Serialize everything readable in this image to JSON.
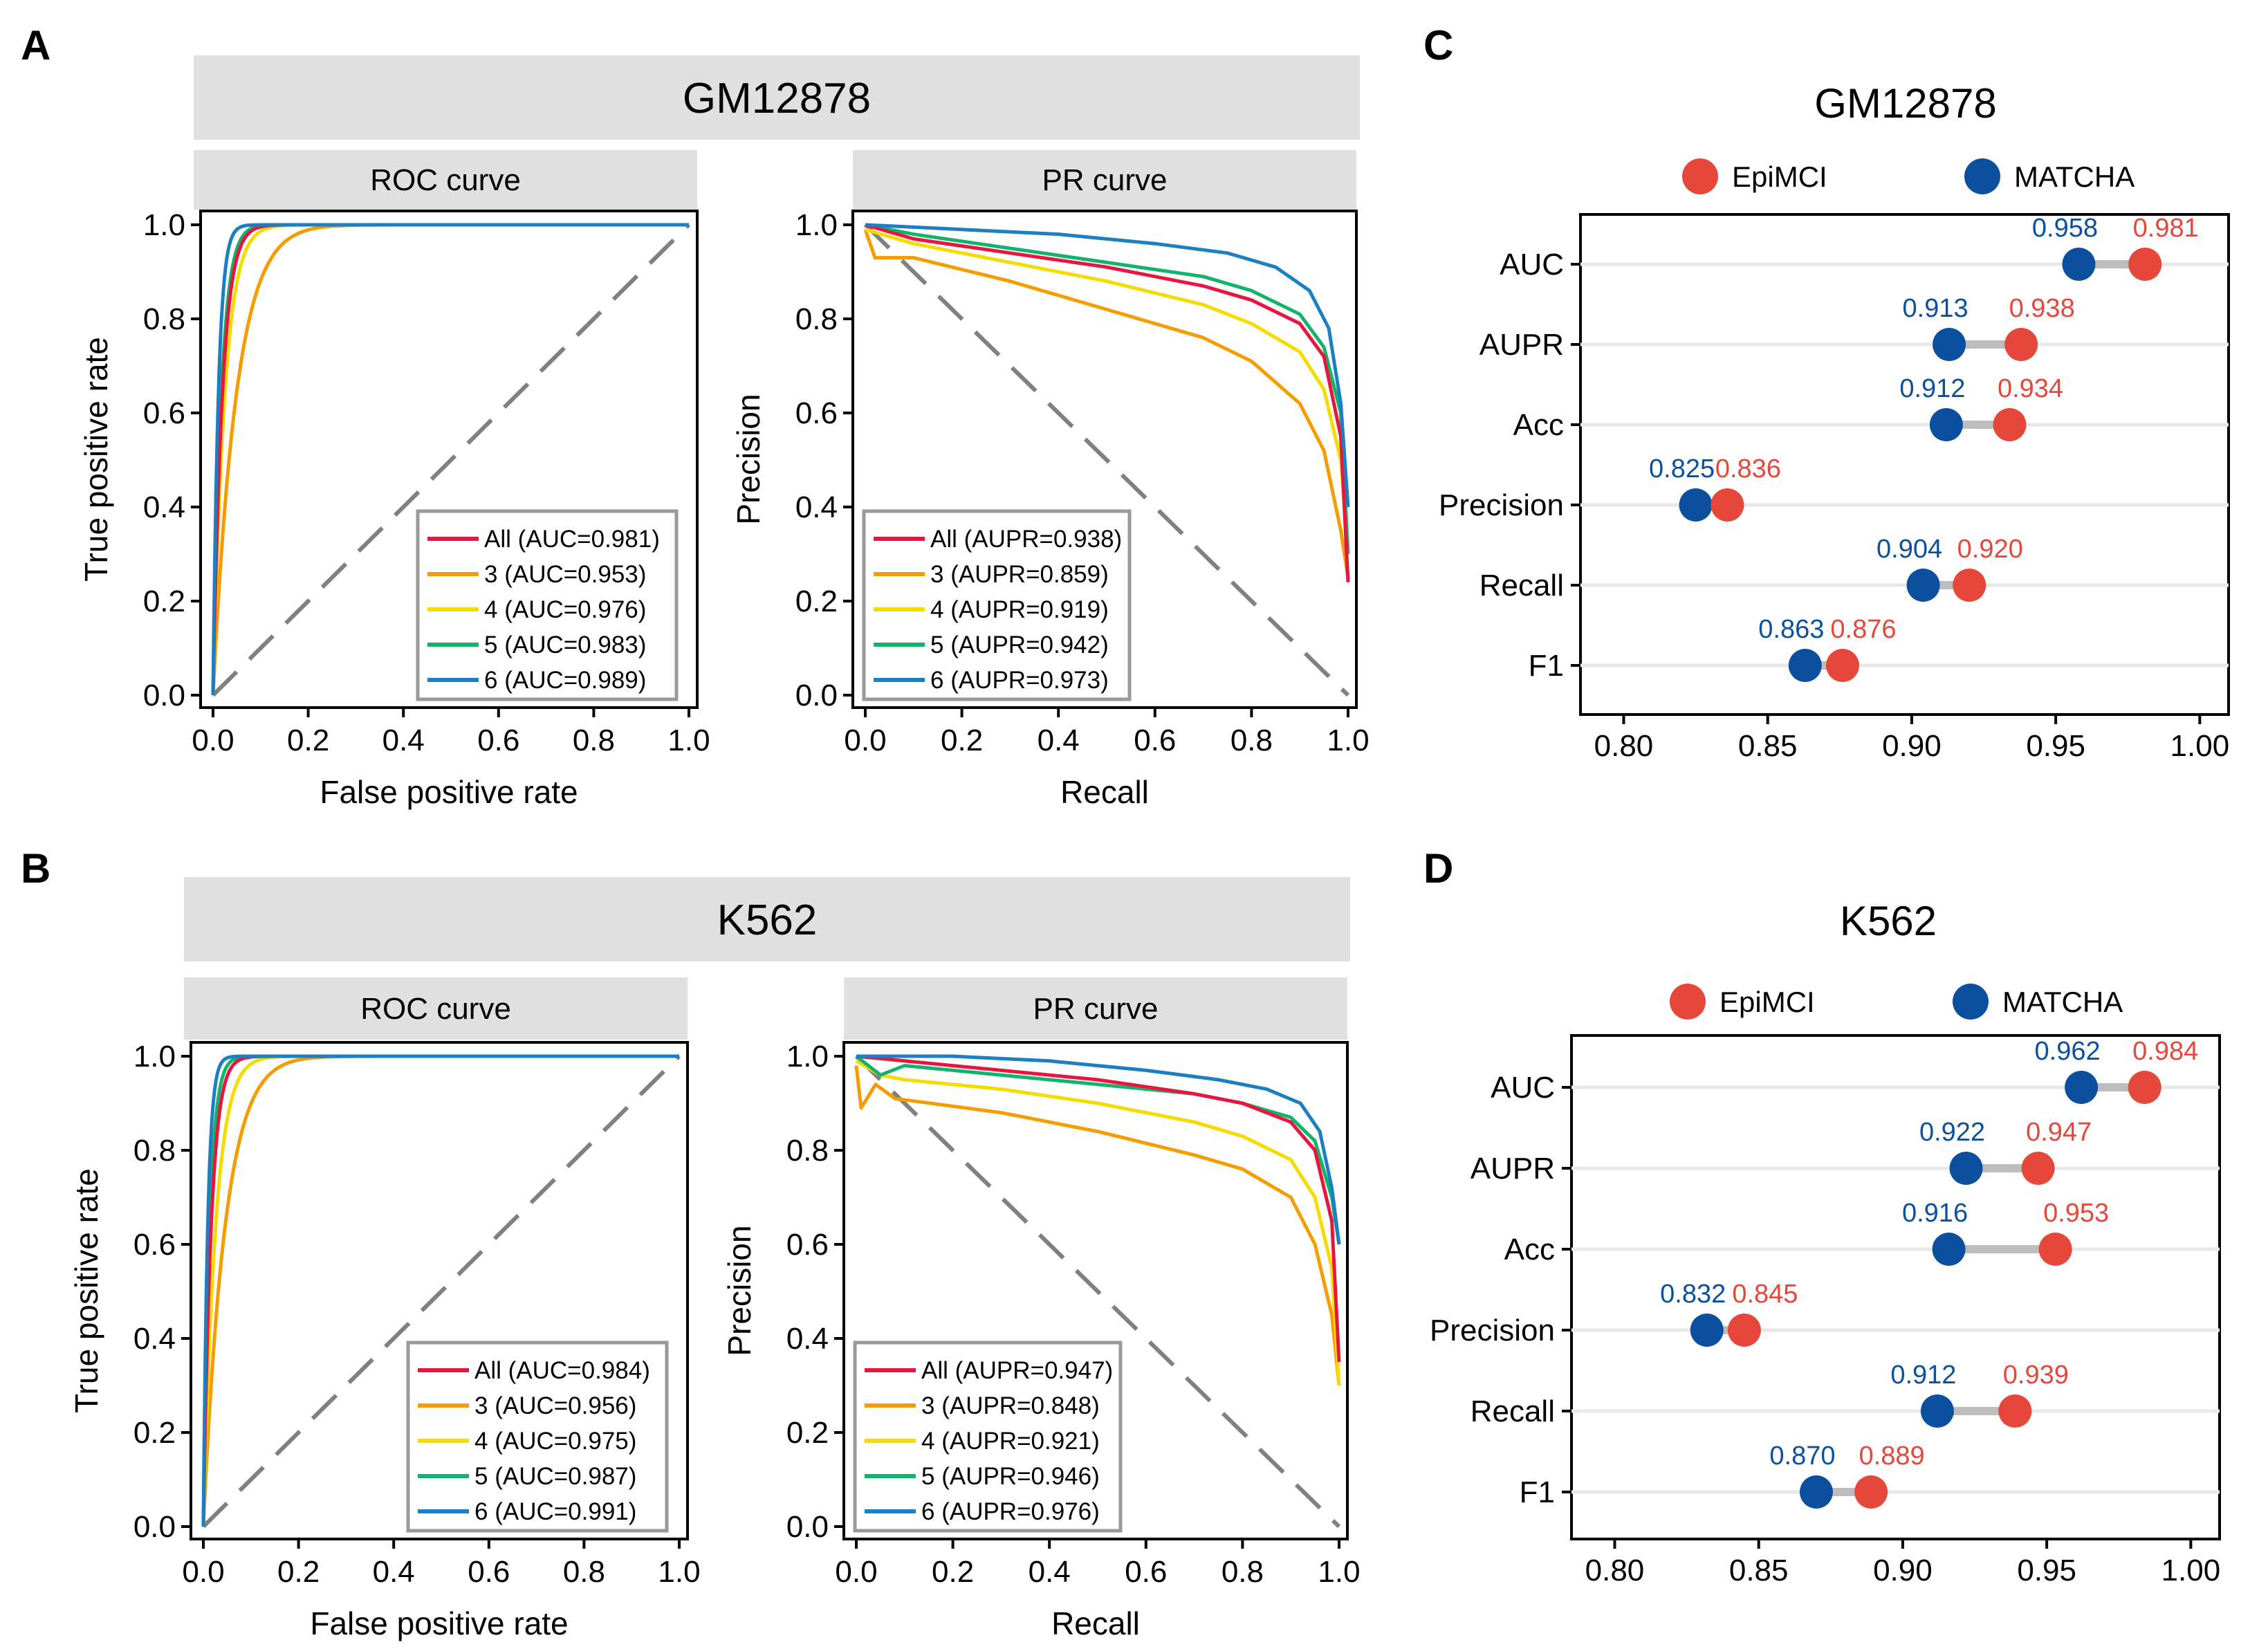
{
  "panel_labels": {
    "A": "A",
    "B": "B",
    "C": "C",
    "D": "D"
  },
  "colors": {
    "All": "#e8163f",
    "3": "#f59d00",
    "4": "#f5dc00",
    "5": "#14b36b",
    "6": "#1b7fc1",
    "epimci": "#e6473b",
    "matcha": "#0b4f9f",
    "strip": "#e0e0e0",
    "diag": "#808080",
    "connector": "#bdbdbd"
  },
  "chart_data": [
    {
      "id": "A",
      "type": "line",
      "cell_line": "GM12878",
      "roc": {
        "strip": "ROC curve",
        "xlabel": "False positive rate",
        "ylabel": "True positive rate",
        "xlim": [
          0,
          1
        ],
        "ylim": [
          0,
          1
        ],
        "xticks": [
          "0.0",
          "0.2",
          "0.4",
          "0.6",
          "0.8",
          "1.0"
        ],
        "yticks": [
          "0.0",
          "0.2",
          "0.4",
          "0.6",
          "0.8",
          "1.0"
        ],
        "legend_position": "bottom-right",
        "series": [
          {
            "key": "All",
            "name": "All (AUC=0.981)",
            "auc": 0.981
          },
          {
            "key": "3",
            "name": "3 (AUC=0.953)",
            "auc": 0.953
          },
          {
            "key": "4",
            "name": "4 (AUC=0.976)",
            "auc": 0.976
          },
          {
            "key": "5",
            "name": "5 (AUC=0.983)",
            "auc": 0.983
          },
          {
            "key": "6",
            "name": "6 (AUC=0.989)",
            "auc": 0.989
          }
        ]
      },
      "pr": {
        "strip": "PR curve",
        "xlabel": "Recall",
        "ylabel": "Precision",
        "xlim": [
          0,
          1
        ],
        "ylim": [
          0,
          1
        ],
        "xticks": [
          "0.0",
          "0.2",
          "0.4",
          "0.6",
          "0.8",
          "1.0"
        ],
        "yticks": [
          "0.0",
          "0.2",
          "0.4",
          "0.6",
          "0.8",
          "1.0"
        ],
        "legend_position": "bottom-left",
        "series": [
          {
            "key": "All",
            "name": "All (AUPR=0.938)",
            "aupr": 0.938,
            "points": [
              [
                0,
                1
              ],
              [
                0.1,
                0.97
              ],
              [
                0.3,
                0.94
              ],
              [
                0.5,
                0.91
              ],
              [
                0.7,
                0.87
              ],
              [
                0.8,
                0.84
              ],
              [
                0.9,
                0.79
              ],
              [
                0.95,
                0.72
              ],
              [
                0.985,
                0.55
              ],
              [
                1,
                0.24
              ]
            ]
          },
          {
            "key": "3",
            "name": "3 (AUPR=0.859)",
            "aupr": 0.859,
            "points": [
              [
                0,
                0.99
              ],
              [
                0.02,
                0.93
              ],
              [
                0.1,
                0.93
              ],
              [
                0.3,
                0.88
              ],
              [
                0.5,
                0.82
              ],
              [
                0.7,
                0.76
              ],
              [
                0.8,
                0.71
              ],
              [
                0.9,
                0.62
              ],
              [
                0.95,
                0.52
              ],
              [
                0.985,
                0.35
              ],
              [
                1,
                0.25
              ]
            ]
          },
          {
            "key": "4",
            "name": "4 (AUPR=0.919)",
            "aupr": 0.919,
            "points": [
              [
                0,
                0.99
              ],
              [
                0.1,
                0.96
              ],
              [
                0.3,
                0.92
              ],
              [
                0.5,
                0.88
              ],
              [
                0.7,
                0.83
              ],
              [
                0.8,
                0.79
              ],
              [
                0.9,
                0.73
              ],
              [
                0.95,
                0.65
              ],
              [
                0.985,
                0.5
              ],
              [
                1,
                0.3
              ]
            ]
          },
          {
            "key": "5",
            "name": "5 (AUPR=0.942)",
            "aupr": 0.942,
            "points": [
              [
                0,
                1
              ],
              [
                0.1,
                0.98
              ],
              [
                0.3,
                0.95
              ],
              [
                0.5,
                0.92
              ],
              [
                0.7,
                0.89
              ],
              [
                0.8,
                0.86
              ],
              [
                0.9,
                0.81
              ],
              [
                0.95,
                0.74
              ],
              [
                0.985,
                0.6
              ],
              [
                1,
                0.3
              ]
            ]
          },
          {
            "key": "6",
            "name": "6 (AUPR=0.973)",
            "aupr": 0.973,
            "points": [
              [
                0,
                1
              ],
              [
                0.2,
                0.99
              ],
              [
                0.4,
                0.98
              ],
              [
                0.6,
                0.96
              ],
              [
                0.75,
                0.94
              ],
              [
                0.85,
                0.91
              ],
              [
                0.92,
                0.86
              ],
              [
                0.96,
                0.78
              ],
              [
                0.985,
                0.62
              ],
              [
                1,
                0.4
              ]
            ]
          }
        ]
      }
    },
    {
      "id": "B",
      "type": "line",
      "cell_line": "K562",
      "roc": {
        "strip": "ROC curve",
        "xlabel": "False positive rate",
        "ylabel": "True positive rate",
        "xlim": [
          0,
          1
        ],
        "ylim": [
          0,
          1
        ],
        "xticks": [
          "0.0",
          "0.2",
          "0.4",
          "0.6",
          "0.8",
          "1.0"
        ],
        "yticks": [
          "0.0",
          "0.2",
          "0.4",
          "0.6",
          "0.8",
          "1.0"
        ],
        "legend_position": "bottom-right",
        "series": [
          {
            "key": "All",
            "name": "All (AUC=0.984)",
            "auc": 0.984
          },
          {
            "key": "3",
            "name": "3 (AUC=0.956)",
            "auc": 0.956
          },
          {
            "key": "4",
            "name": "4 (AUC=0.975)",
            "auc": 0.975
          },
          {
            "key": "5",
            "name": "5 (AUC=0.987)",
            "auc": 0.987
          },
          {
            "key": "6",
            "name": "6 (AUC=0.991)",
            "auc": 0.991
          }
        ]
      },
      "pr": {
        "strip": "PR curve",
        "xlabel": "Recall",
        "ylabel": "Precision",
        "xlim": [
          0,
          1
        ],
        "ylim": [
          0,
          1
        ],
        "xticks": [
          "0.0",
          "0.2",
          "0.4",
          "0.6",
          "0.8",
          "1.0"
        ],
        "yticks": [
          "0.0",
          "0.2",
          "0.4",
          "0.6",
          "0.8",
          "1.0"
        ],
        "legend_position": "bottom-left",
        "series": [
          {
            "key": "All",
            "name": "All (AUPR=0.947)",
            "aupr": 0.947,
            "points": [
              [
                0,
                1
              ],
              [
                0.1,
                0.99
              ],
              [
                0.3,
                0.97
              ],
              [
                0.5,
                0.95
              ],
              [
                0.7,
                0.92
              ],
              [
                0.8,
                0.9
              ],
              [
                0.9,
                0.86
              ],
              [
                0.95,
                0.8
              ],
              [
                0.985,
                0.65
              ],
              [
                1,
                0.35
              ]
            ]
          },
          {
            "key": "3",
            "name": "3 (AUPR=0.848)",
            "aupr": 0.848,
            "points": [
              [
                0,
                0.98
              ],
              [
                0.01,
                0.89
              ],
              [
                0.04,
                0.94
              ],
              [
                0.08,
                0.91
              ],
              [
                0.3,
                0.88
              ],
              [
                0.5,
                0.84
              ],
              [
                0.7,
                0.79
              ],
              [
                0.8,
                0.76
              ],
              [
                0.9,
                0.7
              ],
              [
                0.95,
                0.6
              ],
              [
                0.985,
                0.45
              ],
              [
                1,
                0.3
              ]
            ]
          },
          {
            "key": "4",
            "name": "4 (AUPR=0.921)",
            "aupr": 0.921,
            "points": [
              [
                0,
                0.99
              ],
              [
                0.05,
                0.96
              ],
              [
                0.1,
                0.95
              ],
              [
                0.3,
                0.93
              ],
              [
                0.5,
                0.9
              ],
              [
                0.7,
                0.86
              ],
              [
                0.8,
                0.83
              ],
              [
                0.9,
                0.78
              ],
              [
                0.95,
                0.7
              ],
              [
                0.985,
                0.55
              ],
              [
                1,
                0.3
              ]
            ]
          },
          {
            "key": "5",
            "name": "5 (AUPR=0.946)",
            "aupr": 0.946,
            "points": [
              [
                0,
                1
              ],
              [
                0.05,
                0.96
              ],
              [
                0.1,
                0.98
              ],
              [
                0.3,
                0.96
              ],
              [
                0.5,
                0.94
              ],
              [
                0.7,
                0.92
              ],
              [
                0.8,
                0.9
              ],
              [
                0.9,
                0.87
              ],
              [
                0.95,
                0.82
              ],
              [
                0.985,
                0.7
              ],
              [
                1,
                0.6
              ]
            ]
          },
          {
            "key": "6",
            "name": "6 (AUPR=0.976)",
            "aupr": 0.976,
            "points": [
              [
                0,
                1
              ],
              [
                0.2,
                1
              ],
              [
                0.4,
                0.99
              ],
              [
                0.6,
                0.97
              ],
              [
                0.75,
                0.95
              ],
              [
                0.85,
                0.93
              ],
              [
                0.92,
                0.9
              ],
              [
                0.96,
                0.84
              ],
              [
                0.985,
                0.72
              ],
              [
                1,
                0.6
              ]
            ]
          }
        ]
      }
    },
    {
      "id": "C",
      "type": "dumbbell",
      "title": "GM12878",
      "legend": [
        "EpiMCI",
        "MATCHA"
      ],
      "xlim": [
        0.785,
        1.01
      ],
      "xticks": [
        "0.80",
        "0.85",
        "0.90",
        "0.95",
        "1.00"
      ],
      "categories": [
        "AUC",
        "AUPR",
        "Acc",
        "Precision",
        "Recall",
        "F1"
      ],
      "series": [
        {
          "name": "EpiMCI",
          "values": [
            0.981,
            0.938,
            0.934,
            0.836,
            0.92,
            0.876
          ],
          "labels": [
            "0.981",
            "0.938",
            "0.934",
            "0.836",
            "0.920",
            "0.876"
          ]
        },
        {
          "name": "MATCHA",
          "values": [
            0.958,
            0.913,
            0.912,
            0.825,
            0.904,
            0.863
          ],
          "labels": [
            "0.958",
            "0.913",
            "0.912",
            "0.825",
            "0.904",
            "0.863"
          ]
        }
      ]
    },
    {
      "id": "D",
      "type": "dumbbell",
      "title": "K562",
      "legend": [
        "EpiMCI",
        "MATCHA"
      ],
      "xlim": [
        0.785,
        1.01
      ],
      "xticks": [
        "0.80",
        "0.85",
        "0.90",
        "0.95",
        "1.00"
      ],
      "categories": [
        "AUC",
        "AUPR",
        "Acc",
        "Precision",
        "Recall",
        "F1"
      ],
      "series": [
        {
          "name": "EpiMCI",
          "values": [
            0.984,
            0.947,
            0.953,
            0.845,
            0.939,
            0.889
          ],
          "labels": [
            "0.984",
            "0.947",
            "0.953",
            "0.845",
            "0.939",
            "0.889"
          ]
        },
        {
          "name": "MATCHA",
          "values": [
            0.962,
            0.922,
            0.916,
            0.832,
            0.912,
            0.87
          ],
          "labels": [
            "0.962",
            "0.922",
            "0.916",
            "0.832",
            "0.912",
            "0.870"
          ]
        }
      ]
    }
  ]
}
